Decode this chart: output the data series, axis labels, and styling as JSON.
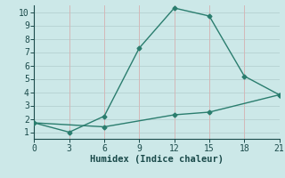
{
  "line1_x": [
    0,
    3,
    6,
    9,
    12,
    15,
    18,
    21
  ],
  "line1_y": [
    1.7,
    1.0,
    2.2,
    7.3,
    10.3,
    9.7,
    5.2,
    3.8
  ],
  "line2_x": [
    0,
    6,
    12,
    15,
    21
  ],
  "line2_y": [
    1.7,
    1.4,
    2.3,
    2.5,
    3.8
  ],
  "line_color": "#2a7d6e",
  "bg_color": "#cce8e8",
  "grid_color_h": "#b8d4d4",
  "grid_color_v": "#d4b8b8",
  "xlabel": "Humidex (Indice chaleur)",
  "xlim": [
    0,
    21
  ],
  "ylim": [
    0.5,
    10.5
  ],
  "xticks": [
    0,
    3,
    6,
    9,
    12,
    15,
    18,
    21
  ],
  "yticks": [
    1,
    2,
    3,
    4,
    5,
    6,
    7,
    8,
    9,
    10
  ],
  "marker": "D",
  "marker_size": 2.5,
  "line_width": 1.0,
  "font_size": 7.5,
  "label_color": "#1a4a4a"
}
